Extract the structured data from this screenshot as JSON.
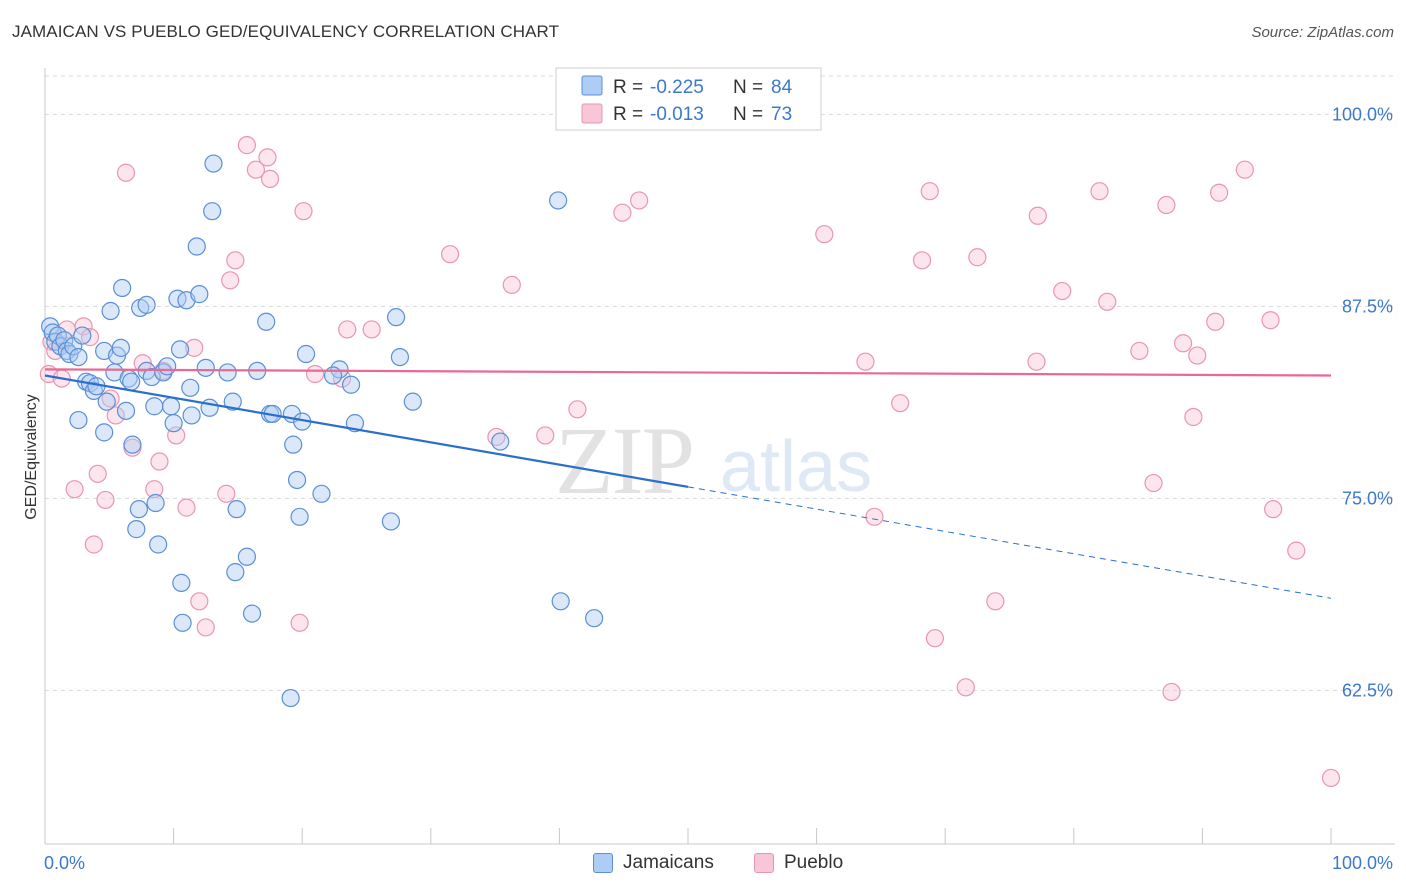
{
  "title": "JAMAICAN VS PUEBLO GED/EQUIVALENCY CORRELATION CHART",
  "source": "Source: ZipAtlas.com",
  "watermark": {
    "part1": "ZIP",
    "part2": "atlas"
  },
  "colors": {
    "jamaican_fill": "#aecdf5",
    "jamaican_stroke": "#5b8fd6",
    "jamaican_line": "#2a6fce",
    "pueblo_fill": "#f8c6d6",
    "pueblo_stroke": "#e995b1",
    "pueblo_line": "#e86a93",
    "tick_label": "#3b78d0",
    "grid": "#d9d9d9"
  },
  "legend_top": [
    {
      "r_label": "R =",
      "r_value": "-0.225",
      "n_label": "N =",
      "n_value": "84"
    },
    {
      "r_label": "R =",
      "r_value": "-0.013",
      "n_label": "N =",
      "n_value": "73"
    }
  ],
  "legend_bottom": [
    "Jamaicans",
    "Pueblo"
  ],
  "chart_data": {
    "type": "scatter",
    "xlabel": "",
    "ylabel": "GED/Equivalency",
    "xlim": [
      0,
      100
    ],
    "ylim": [
      52.5,
      102.5
    ],
    "x_tick_labels": [
      {
        "value": 0,
        "label": "0.0%"
      },
      {
        "value": 100,
        "label": "100.0%"
      }
    ],
    "y_tick_labels": [
      {
        "value": 100,
        "label": "100.0%"
      },
      {
        "value": 87.5,
        "label": "87.5%"
      },
      {
        "value": 75,
        "label": "75.0%"
      },
      {
        "value": 62.5,
        "label": "62.5%"
      }
    ],
    "grid": "horizontal dashed",
    "series": [
      {
        "name": "Jamaicans",
        "r": -0.225,
        "n": 84,
        "trend": {
          "x": [
            0,
            100
          ],
          "y": [
            83.0,
            68.5
          ],
          "solid_until_x": 50
        },
        "points": [
          [
            0.4,
            86.2
          ],
          [
            0.6,
            85.8
          ],
          [
            0.8,
            85.2
          ],
          [
            1.0,
            85.6
          ],
          [
            1.2,
            84.9
          ],
          [
            1.5,
            85.3
          ],
          [
            1.7,
            84.6
          ],
          [
            1.9,
            84.4
          ],
          [
            2.2,
            84.9
          ],
          [
            2.6,
            84.2
          ],
          [
            2.9,
            85.6
          ],
          [
            3.2,
            82.6
          ],
          [
            3.5,
            82.5
          ],
          [
            3.8,
            82.0
          ],
          [
            4.0,
            82.3
          ],
          [
            2.6,
            80.1
          ],
          [
            4.6,
            84.6
          ],
          [
            4.6,
            79.3
          ],
          [
            4.8,
            81.3
          ],
          [
            5.1,
            87.2
          ],
          [
            5.4,
            83.2
          ],
          [
            5.6,
            84.3
          ],
          [
            5.9,
            84.8
          ],
          [
            6.0,
            88.7
          ],
          [
            6.3,
            80.7
          ],
          [
            6.5,
            82.8
          ],
          [
            6.7,
            82.6
          ],
          [
            6.8,
            78.5
          ],
          [
            7.3,
            74.3
          ],
          [
            7.1,
            73.0
          ],
          [
            7.4,
            87.4
          ],
          [
            7.9,
            83.3
          ],
          [
            7.9,
            87.6
          ],
          [
            8.3,
            82.9
          ],
          [
            8.5,
            81.0
          ],
          [
            8.6,
            74.7
          ],
          [
            8.8,
            72.0
          ],
          [
            9.2,
            83.2
          ],
          [
            9.5,
            83.6
          ],
          [
            9.8,
            81.0
          ],
          [
            10.0,
            79.9
          ],
          [
            10.3,
            88.0
          ],
          [
            10.5,
            84.7
          ],
          [
            10.6,
            69.5
          ],
          [
            10.7,
            66.9
          ],
          [
            11.0,
            87.9
          ],
          [
            11.4,
            80.4
          ],
          [
            11.3,
            82.2
          ],
          [
            11.8,
            91.4
          ],
          [
            12.0,
            88.3
          ],
          [
            12.5,
            83.5
          ],
          [
            12.8,
            80.9
          ],
          [
            13.0,
            93.7
          ],
          [
            13.1,
            96.8
          ],
          [
            14.2,
            83.2
          ],
          [
            14.6,
            81.3
          ],
          [
            14.8,
            70.2
          ],
          [
            14.9,
            74.3
          ],
          [
            15.7,
            71.2
          ],
          [
            16.1,
            67.5
          ],
          [
            16.5,
            83.3
          ],
          [
            17.2,
            86.5
          ],
          [
            17.5,
            80.5
          ],
          [
            17.7,
            80.5
          ],
          [
            19.1,
            62.0
          ],
          [
            19.2,
            80.5
          ],
          [
            19.3,
            78.5
          ],
          [
            19.6,
            76.2
          ],
          [
            19.8,
            73.8
          ],
          [
            20.0,
            80.0
          ],
          [
            20.3,
            84.4
          ],
          [
            21.5,
            75.3
          ],
          [
            22.9,
            83.4
          ],
          [
            22.4,
            83.0
          ],
          [
            23.8,
            82.4
          ],
          [
            24.1,
            79.9
          ],
          [
            26.9,
            73.5
          ],
          [
            27.3,
            86.8
          ],
          [
            27.6,
            84.2
          ],
          [
            28.6,
            81.3
          ],
          [
            35.4,
            78.7
          ],
          [
            39.9,
            94.4
          ],
          [
            40.1,
            68.3
          ],
          [
            42.7,
            67.2
          ]
        ]
      },
      {
        "name": "Pueblo",
        "r": -0.013,
        "n": 73,
        "trend": {
          "x": [
            0,
            100
          ],
          "y": [
            83.4,
            83.0
          ]
        },
        "points": [
          [
            0.3,
            83.1
          ],
          [
            0.5,
            85.2
          ],
          [
            0.8,
            84.6
          ],
          [
            1.3,
            82.8
          ],
          [
            1.7,
            86.0
          ],
          [
            2.3,
            75.6
          ],
          [
            3.0,
            86.2
          ],
          [
            3.5,
            85.5
          ],
          [
            3.8,
            72.0
          ],
          [
            4.1,
            76.6
          ],
          [
            4.7,
            74.9
          ],
          [
            5.1,
            81.5
          ],
          [
            5.5,
            80.4
          ],
          [
            6.3,
            96.2
          ],
          [
            6.8,
            78.3
          ],
          [
            7.6,
            83.8
          ],
          [
            8.5,
            75.6
          ],
          [
            8.9,
            77.4
          ],
          [
            9.2,
            83.3
          ],
          [
            10.2,
            79.1
          ],
          [
            11.0,
            74.4
          ],
          [
            11.6,
            84.8
          ],
          [
            12.0,
            68.3
          ],
          [
            12.5,
            66.6
          ],
          [
            14.1,
            75.3
          ],
          [
            14.4,
            89.2
          ],
          [
            14.8,
            90.5
          ],
          [
            15.7,
            98.0
          ],
          [
            16.4,
            96.4
          ],
          [
            17.3,
            97.2
          ],
          [
            17.5,
            95.8
          ],
          [
            19.8,
            66.9
          ],
          [
            20.1,
            93.7
          ],
          [
            21.0,
            83.1
          ],
          [
            23.1,
            82.8
          ],
          [
            23.5,
            86.0
          ],
          [
            25.4,
            86.0
          ],
          [
            31.5,
            90.9
          ],
          [
            35.1,
            79.0
          ],
          [
            36.3,
            88.9
          ],
          [
            38.9,
            79.1
          ],
          [
            41.4,
            80.8
          ],
          [
            44.9,
            93.6
          ],
          [
            46.2,
            94.4
          ],
          [
            60.6,
            92.2
          ],
          [
            63.8,
            83.9
          ],
          [
            64.5,
            73.8
          ],
          [
            66.5,
            81.2
          ],
          [
            68.2,
            90.5
          ],
          [
            68.8,
            95.0
          ],
          [
            69.2,
            65.9
          ],
          [
            71.6,
            62.7
          ],
          [
            72.5,
            90.7
          ],
          [
            73.9,
            68.3
          ],
          [
            77.2,
            93.4
          ],
          [
            77.1,
            83.9
          ],
          [
            79.1,
            88.5
          ],
          [
            82.0,
            95.0
          ],
          [
            82.6,
            87.8
          ],
          [
            85.1,
            84.6
          ],
          [
            86.2,
            76.0
          ],
          [
            87.2,
            94.1
          ],
          [
            87.6,
            62.4
          ],
          [
            88.5,
            85.1
          ],
          [
            89.3,
            80.3
          ],
          [
            89.6,
            84.3
          ],
          [
            91.0,
            86.5
          ],
          [
            91.3,
            94.9
          ],
          [
            93.3,
            96.4
          ],
          [
            95.3,
            86.6
          ],
          [
            95.5,
            74.3
          ],
          [
            97.3,
            71.6
          ],
          [
            100.0,
            56.8
          ]
        ]
      }
    ]
  }
}
